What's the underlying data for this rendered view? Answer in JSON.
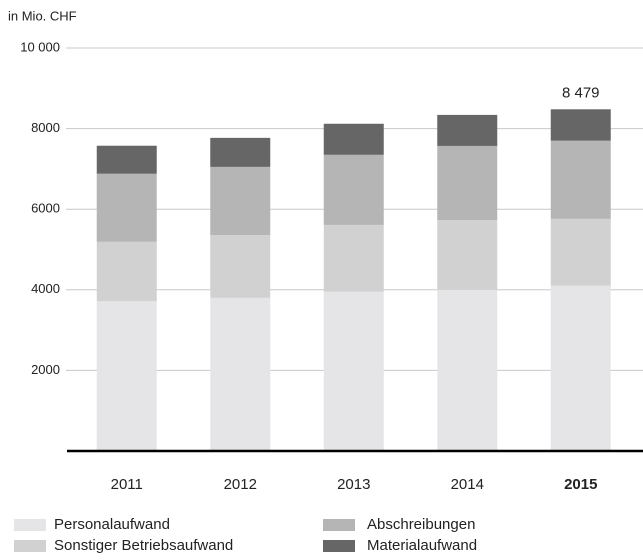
{
  "chart_data": {
    "type": "stacked_bar",
    "y_axis_label": "in Mio. CHF",
    "categories": [
      "2011",
      "2012",
      "2013",
      "2014",
      "2015"
    ],
    "series": [
      {
        "name": "Personalaufwand",
        "color": "#e5e5e7",
        "values": [
          3720,
          3800,
          3950,
          4000,
          4100
        ]
      },
      {
        "name": "Sonstiger Betriebsaufwand",
        "color": "#d1d1d1",
        "values": [
          1470,
          1560,
          1660,
          1730,
          1660
        ]
      },
      {
        "name": "Abschreibungen",
        "color": "#b5b5b5",
        "values": [
          1690,
          1690,
          1740,
          1840,
          1940
        ]
      },
      {
        "name": "Materialaufwand",
        "color": "#666666",
        "values": [
          695,
          720,
          770,
          770,
          779
        ]
      }
    ],
    "annotations": [
      {
        "category": 4,
        "value": 8479,
        "label": "8 479"
      }
    ],
    "ylim": [
      0,
      10000
    ],
    "yticks": [
      2000,
      4000,
      6000,
      8000,
      {
        "value": 10000,
        "label": "10 000"
      }
    ],
    "grid": true
  }
}
